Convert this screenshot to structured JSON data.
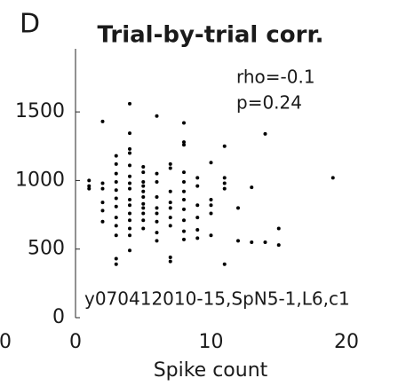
{
  "panel_label": "D",
  "cropped_tick_label": "0",
  "chart_data": {
    "type": "scatter",
    "title": "Trial-by-trial corr.",
    "x_label": "Spike count",
    "annotations": [
      "rho=-0.1",
      "p=0.24",
      "y070412010-15,SpN5-1,L6,c1"
    ],
    "color": "#000000",
    "xlim": [
      0,
      20
    ],
    "ylim": [
      0,
      1960
    ],
    "xticks": [
      0,
      10,
      20
    ],
    "yticks": [
      0,
      500,
      1000,
      1500
    ],
    "x": [
      1,
      1,
      1,
      2,
      2,
      2,
      2,
      2,
      2,
      3,
      3,
      3,
      3,
      3,
      3,
      3,
      3,
      3,
      3,
      3,
      3,
      4,
      4,
      4,
      4,
      4,
      4,
      4,
      4,
      4,
      4,
      4,
      4,
      4,
      4,
      4,
      5,
      5,
      5,
      5,
      5,
      5,
      5,
      5,
      5,
      5,
      5,
      6,
      6,
      6,
      6,
      6,
      6,
      6,
      6,
      6,
      7,
      7,
      7,
      7,
      7,
      7,
      7,
      7,
      7,
      8,
      8,
      8,
      8,
      8,
      8,
      8,
      8,
      8,
      8,
      8,
      9,
      9,
      9,
      9,
      9,
      9,
      10,
      10,
      10,
      10,
      10,
      11,
      11,
      11,
      11,
      11,
      12,
      12,
      13,
      13,
      14,
      14,
      15,
      15,
      19
    ],
    "values": [
      1000,
      960,
      940,
      1430,
      980,
      940,
      840,
      780,
      700,
      1180,
      1120,
      1050,
      990,
      930,
      870,
      810,
      730,
      670,
      600,
      430,
      390,
      1560,
      1345,
      1230,
      1200,
      1110,
      1030,
      980,
      940,
      860,
      820,
      760,
      710,
      650,
      600,
      490,
      1100,
      1060,
      990,
      960,
      920,
      880,
      830,
      800,
      760,
      710,
      650,
      1470,
      1050,
      990,
      880,
      800,
      760,
      700,
      620,
      560,
      1120,
      1090,
      920,
      840,
      800,
      730,
      670,
      440,
      410,
      1420,
      1280,
      1260,
      1060,
      990,
      920,
      860,
      790,
      710,
      630,
      570,
      1020,
      960,
      820,
      730,
      640,
      580,
      1130,
      860,
      820,
      760,
      600,
      1250,
      1020,
      980,
      940,
      390,
      800,
      560,
      950,
      550,
      1340,
      550,
      650,
      530,
      1020
    ]
  }
}
